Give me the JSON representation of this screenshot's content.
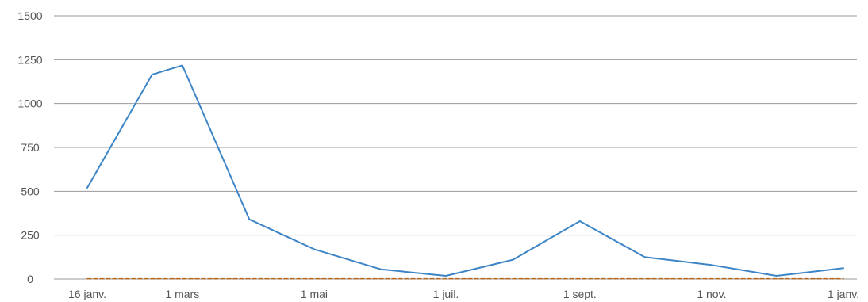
{
  "chart_data": {
    "type": "line",
    "title": "",
    "xlabel": "",
    "ylabel": "",
    "ylim": [
      0,
      1500
    ],
    "y_ticks": [
      0,
      250,
      500,
      750,
      1000,
      1250,
      1500
    ],
    "y_tick_labels": [
      "0",
      "250",
      "500",
      "750",
      "1000",
      "1250",
      "1500"
    ],
    "x_ticks": [
      "2023-01-16",
      "2023-03-01",
      "2023-05-01",
      "2023-07-01",
      "2023-09-01",
      "2023-11-01",
      "2024-01-01"
    ],
    "x_tick_labels": [
      "16 janv.",
      "1 mars",
      "1 mai",
      "1 juil.",
      "1 sept.",
      "1 nov.",
      "1 janv."
    ],
    "grid": true,
    "legend": "none",
    "series": [
      {
        "color": "#3d85c6",
        "style": "solid",
        "points": [
          {
            "x": "2023-01-16",
            "y": 520
          },
          {
            "x": "2023-02-15",
            "y": 1165
          },
          {
            "x": "2023-03-01",
            "y": 1218
          },
          {
            "x": "2023-04-01",
            "y": 340
          },
          {
            "x": "2023-05-01",
            "y": 170
          },
          {
            "x": "2023-06-01",
            "y": 55
          },
          {
            "x": "2023-07-01",
            "y": 18
          },
          {
            "x": "2023-08-01",
            "y": 110
          },
          {
            "x": "2023-09-01",
            "y": 330
          },
          {
            "x": "2023-10-01",
            "y": 125
          },
          {
            "x": "2023-11-01",
            "y": 80
          },
          {
            "x": "2023-12-01",
            "y": 18
          },
          {
            "x": "2024-01-01",
            "y": 62
          }
        ]
      },
      {
        "color": "#b5651d",
        "style": "dashed",
        "points": [
          {
            "x": "2023-01-16",
            "y": 2
          },
          {
            "x": "2024-01-01",
            "y": 2
          }
        ]
      }
    ]
  }
}
